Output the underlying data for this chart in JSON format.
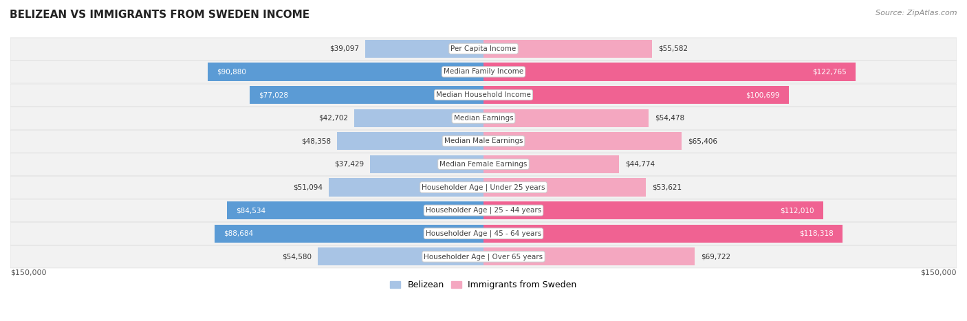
{
  "title": "BELIZEAN VS IMMIGRANTS FROM SWEDEN INCOME",
  "source": "Source: ZipAtlas.com",
  "categories": [
    "Per Capita Income",
    "Median Family Income",
    "Median Household Income",
    "Median Earnings",
    "Median Male Earnings",
    "Median Female Earnings",
    "Householder Age | Under 25 years",
    "Householder Age | 25 - 44 years",
    "Householder Age | 45 - 64 years",
    "Householder Age | Over 65 years"
  ],
  "belizean_values": [
    39097,
    90880,
    77028,
    42702,
    48358,
    37429,
    51094,
    84534,
    88684,
    54580
  ],
  "sweden_values": [
    55582,
    122765,
    100699,
    54478,
    65406,
    44774,
    53621,
    112010,
    118318,
    69722
  ],
  "belizean_labels": [
    "$39,097",
    "$90,880",
    "$77,028",
    "$42,702",
    "$48,358",
    "$37,429",
    "$51,094",
    "$84,534",
    "$88,684",
    "$54,580"
  ],
  "sweden_labels": [
    "$55,582",
    "$122,765",
    "$100,699",
    "$54,478",
    "$65,406",
    "$44,774",
    "$53,621",
    "$112,010",
    "$118,318",
    "$69,722"
  ],
  "max_value": 150000,
  "belizean_color_light": "#a8c4e5",
  "belizean_color_dark": "#5b9bd5",
  "sweden_color_light": "#f4a7c0",
  "sweden_color_dark": "#f06292",
  "bg_row_color": "#f2f2f2",
  "bg_row_edge": "#e0e0e0",
  "legend_belizean": "Belizean",
  "legend_sweden": "Immigrants from Sweden",
  "xlabel_left": "$150,000",
  "xlabel_right": "$150,000",
  "belizean_dark_threshold": 70000,
  "sweden_dark_threshold": 70000
}
